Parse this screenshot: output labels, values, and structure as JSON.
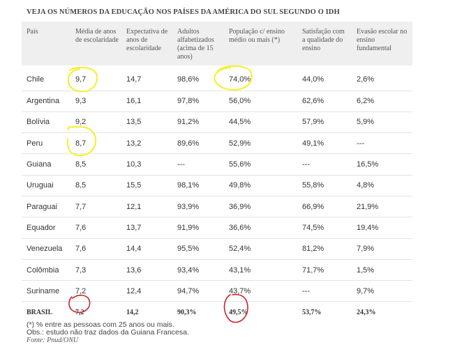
{
  "title": "VEJA OS NÚMEROS DA EDUCAÇÃO NOS PAÍSES DA AMÉRICA DO SUL SEGUNDO O IDH",
  "columns": [
    "País",
    "Média de anos de escolaridade",
    "Expectativa de anos de escolaridade",
    "Adultos alfabetizados (acima de 15 anos)",
    "População c/ ensino médio ou mais (*)",
    "Satisfação com a qualidade do ensino",
    "Evasão escolar no ensino fundamental"
  ],
  "rows": [
    [
      "Chile",
      "9,7",
      "14,7",
      "98,6%",
      "74,0%",
      "44,0%",
      "2,6%"
    ],
    [
      "Argentina",
      "9,3",
      "16,1",
      "97,8%",
      "56,0%",
      "62,6%",
      "6,2%"
    ],
    [
      "Bolívia",
      "9,2",
      "13,5",
      "91,2%",
      "44,5%",
      "57,9%",
      "5,9%"
    ],
    [
      "Peru",
      "8,7",
      "13,2",
      "89,6%",
      "52,9%",
      "49,1%",
      "---"
    ],
    [
      "Guiana",
      "8,5",
      "10,3",
      "---",
      "55,6%",
      "---",
      "16,5%"
    ],
    [
      "Uruguai",
      "8,5",
      "15,5",
      "98,1%",
      "49,8%",
      "55,8%",
      "4,8%"
    ],
    [
      "Paraguai",
      "7,7",
      "12,1",
      "93,9%",
      "36,9%",
      "66,9%",
      "21,9%"
    ],
    [
      "Equador",
      "7,6",
      "13,7",
      "91,9%",
      "36,6%",
      "74,5%",
      "19,4%"
    ],
    [
      "Venezuela",
      "7,6",
      "14,4",
      "95,5%",
      "52,4%",
      "81,2%",
      "7,9%"
    ],
    [
      "Colômbia",
      "7,3",
      "13,6",
      "93,4%",
      "43,1%",
      "71,7%",
      "1,5%"
    ],
    [
      "Suriname",
      "7,2",
      "12,4",
      "94,7%",
      "43,7%",
      "---",
      "9,7%"
    ],
    [
      "BRASIL",
      "7,2",
      "14,2",
      "90,3%",
      "49,5%",
      "53,7%",
      "24,3%"
    ]
  ],
  "notes": {
    "asterisk": "(*) % entre as pessoas com 25 anos ou mais.",
    "obs": "Obs.: estudo não traz dados da Guiana Francesa.",
    "source": "Fonte: Pnud/ONU"
  },
  "highlights": {
    "yellow": "#f5f03a",
    "red": "#c8242b"
  }
}
